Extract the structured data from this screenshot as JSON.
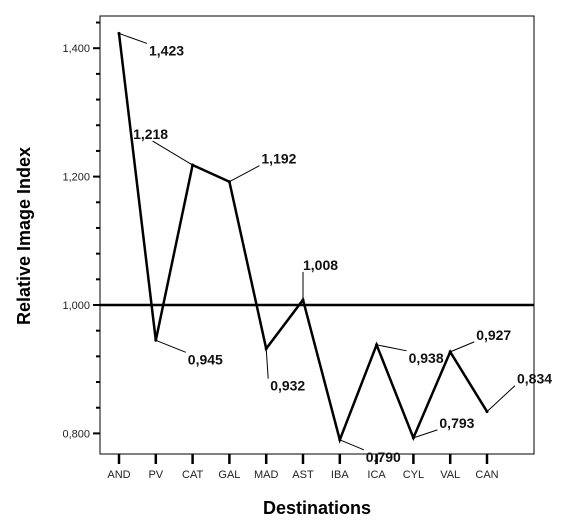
{
  "chart_data": {
    "type": "line",
    "xlabel": "Destinations",
    "ylabel": "Relative Image Index",
    "categories": [
      "AND",
      "PV",
      "CAT",
      "GAL",
      "MAD",
      "AST",
      "IBA",
      "ICA",
      "CYL",
      "VAL",
      "CAN"
    ],
    "series": [
      {
        "values": [
          1.423,
          0.945,
          1.218,
          1.192,
          0.932,
          1.008,
          0.79,
          0.938,
          0.793,
          0.927,
          0.834
        ]
      }
    ],
    "data_labels": [
      "1,423",
      "0,945",
      "1,218",
      "1,192",
      "0,932",
      "1,008",
      "0,790",
      "0,938",
      "0,793",
      "0,927",
      "0,834"
    ],
    "y_ticks": [
      0.8,
      1.0,
      1.2,
      1.4
    ],
    "y_tick_labels": [
      "0,800",
      "1,000",
      "1,200",
      "1,400"
    ],
    "ylim": [
      0.76,
      1.44
    ],
    "reference_line": 1.0,
    "grid": false,
    "legend": "none",
    "colors": {
      "line": "#000000",
      "axis": "#000000"
    }
  }
}
